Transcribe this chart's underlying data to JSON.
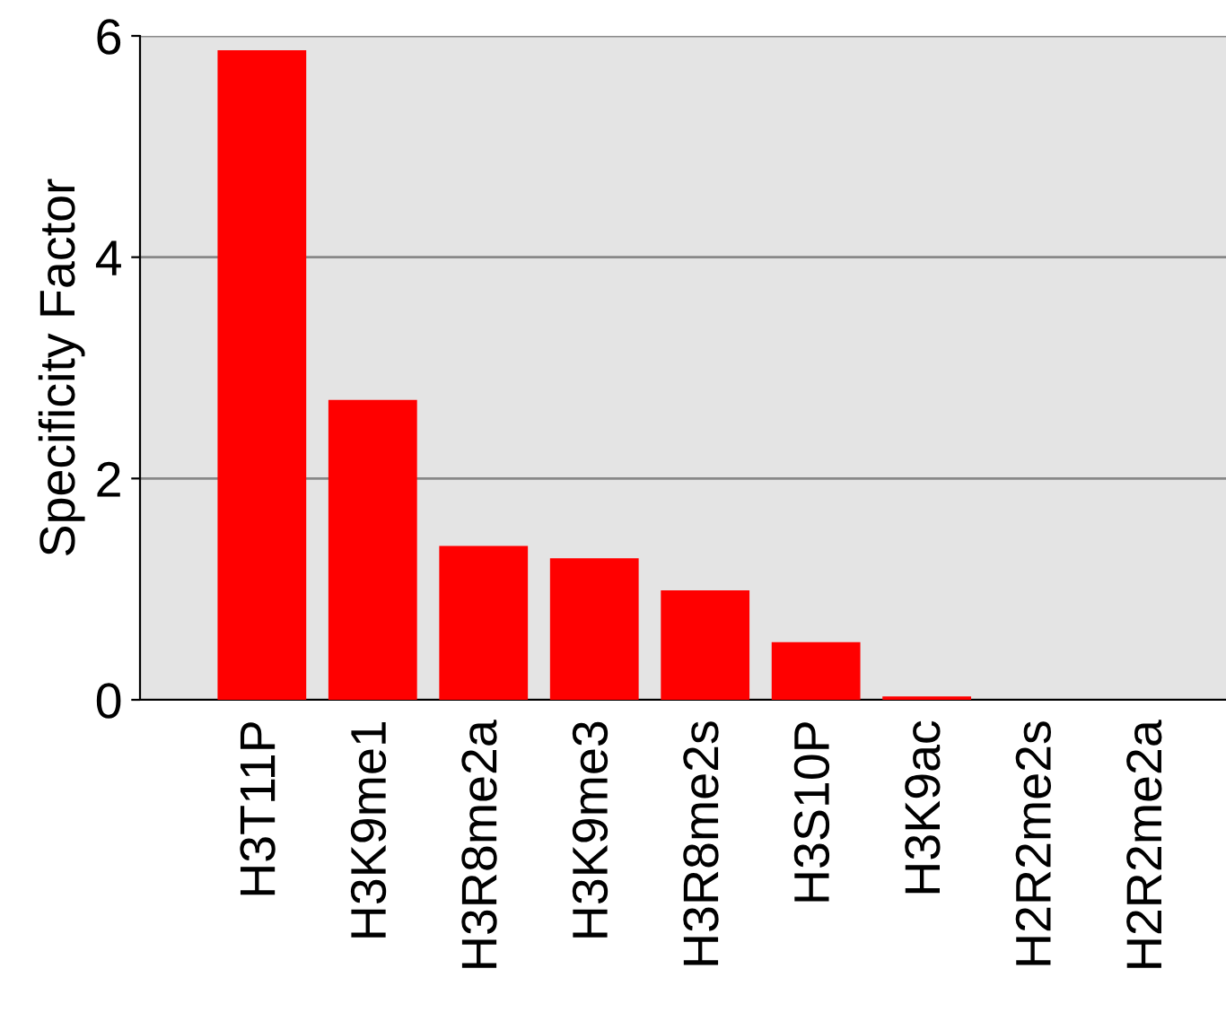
{
  "chart_data": {
    "type": "bar",
    "ylabel": "Specificity Factor",
    "categories": [
      "H3T11P",
      "H3K9me1",
      "H3R8me2a",
      "H3K9me3",
      "H3R8me2s",
      "H3S10P",
      "H3K9ac",
      "H2R2me2s",
      "H2R2me2a"
    ],
    "values": [
      5.87,
      2.71,
      1.39,
      1.28,
      0.99,
      0.52,
      0.03,
      0,
      0
    ],
    "color": "#ff0000",
    "ylim": [
      0,
      6
    ],
    "yticks": [
      0,
      2,
      4,
      6
    ],
    "grid": "y"
  }
}
